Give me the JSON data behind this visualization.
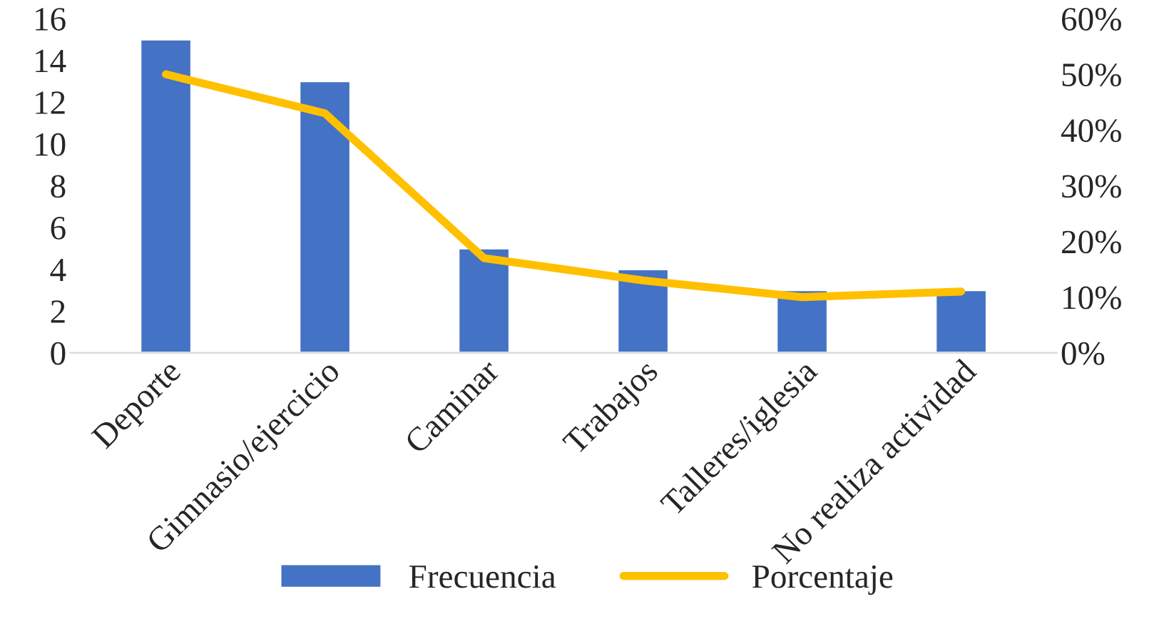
{
  "chart_data": {
    "type": "bar",
    "categories": [
      "Deporte",
      "Gimnasio/ejercicio",
      "Caminar",
      "Trabajos",
      "Talleres/iglesia",
      "No realiza actividad"
    ],
    "series": [
      {
        "name": "Frecuencia",
        "color": "#4472c4",
        "values": [
          15,
          13,
          5,
          4,
          3,
          3
        ]
      },
      {
        "name": "Porcentaje",
        "type": "line",
        "axis": "y2",
        "color": "#ffc000",
        "values": [
          50,
          43,
          17,
          13,
          10,
          11
        ]
      }
    ],
    "ylim": [
      0,
      16
    ],
    "yticks": [
      0,
      2,
      4,
      6,
      8,
      10,
      12,
      14,
      16
    ],
    "y2lim": [
      0,
      60
    ],
    "y2ticks": [
      {
        "value": 0,
        "label": "0%"
      },
      {
        "value": 10,
        "label": "10%"
      },
      {
        "value": 20,
        "label": "20%"
      },
      {
        "value": 30,
        "label": "30%"
      },
      {
        "value": 40,
        "label": "40%"
      },
      {
        "value": 50,
        "label": "50%"
      },
      {
        "value": 60,
        "label": "60%"
      }
    ],
    "grid": false,
    "legend": "bottom"
  }
}
